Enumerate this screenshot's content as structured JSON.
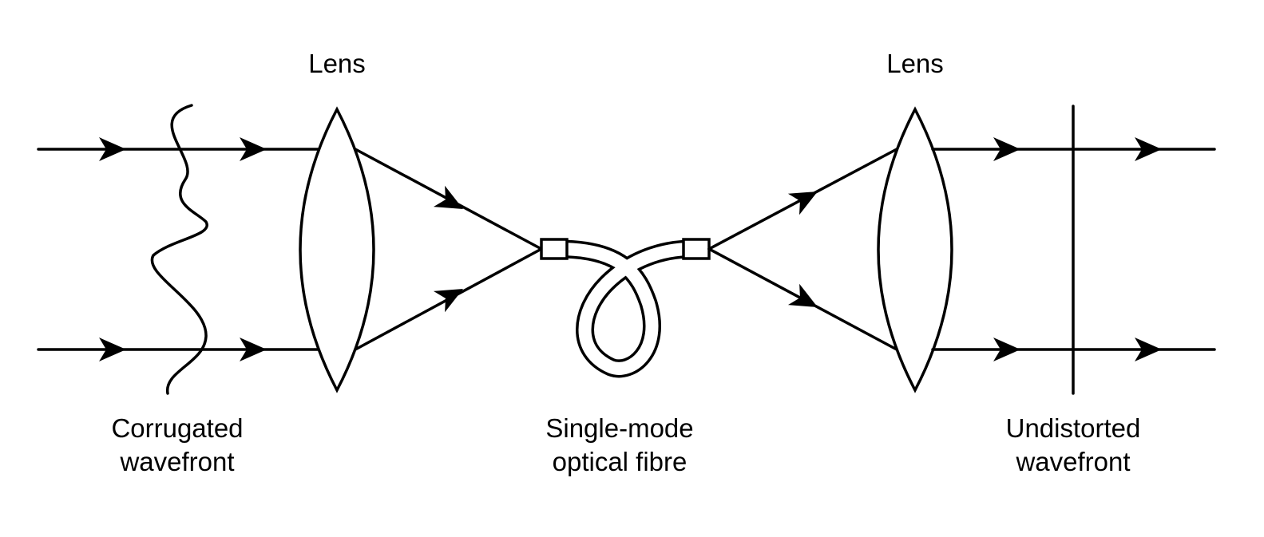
{
  "labels": {
    "lens_left": "Lens",
    "lens_right": "Lens",
    "corrugated_line1": "Corrugated",
    "corrugated_line2": "wavefront",
    "fibre_line1": "Single-mode",
    "fibre_line2": "optical fibre",
    "undistorted_line1": "Undistorted",
    "undistorted_line2": "wavefront"
  },
  "colors": {
    "stroke": "#000000",
    "background": "#ffffff"
  }
}
